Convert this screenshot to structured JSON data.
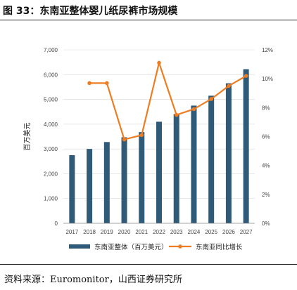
{
  "header": {
    "title": "图 33：东南亚整体婴儿纸尿裤市场规模"
  },
  "footer": {
    "source": "资料来源：Euromonitor，山西证券研究所"
  },
  "colors": {
    "bar": "#2f5a78",
    "line": "#ee7d22",
    "gridline": "#d9d9d9"
  },
  "chart_data": {
    "type": "bar",
    "title": "",
    "xlabel": "",
    "ylabel": "百万美元",
    "ylim": [
      0,
      7000
    ],
    "y2lim": [
      0,
      12
    ],
    "yticks": [
      "0",
      "1,000",
      "2,000",
      "3,000",
      "4,000",
      "5,000",
      "6,000",
      "7,000"
    ],
    "y2ticks": [
      "0%",
      "2%",
      "4%",
      "6%",
      "8%",
      "10%",
      "12%"
    ],
    "categories": [
      "2017",
      "2018",
      "2019",
      "2020",
      "2021",
      "2022",
      "2023",
      "2024",
      "2025",
      "2026",
      "2027"
    ],
    "series": [
      {
        "name": "东南亚整体（百万美元）",
        "type": "bar",
        "axis": "left",
        "values": [
          2750,
          3000,
          3280,
          3470,
          3680,
          4100,
          4410,
          4750,
          5150,
          5650,
          6220
        ]
      },
      {
        "name": "东南亚同比增长",
        "type": "line",
        "axis": "right",
        "values": [
          null,
          9.7,
          9.7,
          5.8,
          6.1,
          11.1,
          7.5,
          7.9,
          8.6,
          9.5,
          10.2
        ]
      }
    ],
    "legend": "bottom"
  }
}
